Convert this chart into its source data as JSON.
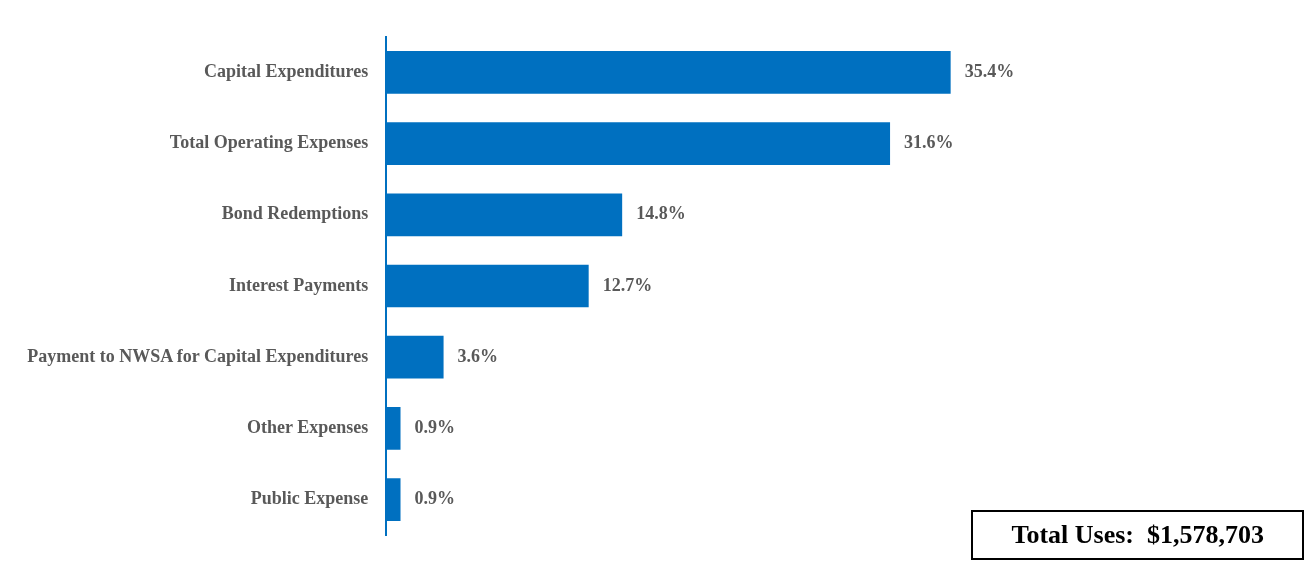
{
  "chart_data": {
    "type": "bar",
    "orientation": "horizontal",
    "color": "#0070c0",
    "categories": [
      "Capital Expenditures",
      "Total Operating Expenses",
      "Bond Redemptions",
      "Interest Payments",
      "Payment to NWSA for Capital Expenditures",
      "Other Expenses",
      "Public Expense"
    ],
    "values": [
      35.4,
      31.6,
      14.8,
      12.7,
      3.6,
      0.9,
      0.9
    ],
    "value_labels": [
      "35.4%",
      "31.6%",
      "14.8%",
      "12.7%",
      "3.6%",
      "0.9%",
      "0.9%"
    ],
    "annotations": [
      "Total Uses:  $1,578,703"
    ],
    "grid": false,
    "legend": false
  }
}
